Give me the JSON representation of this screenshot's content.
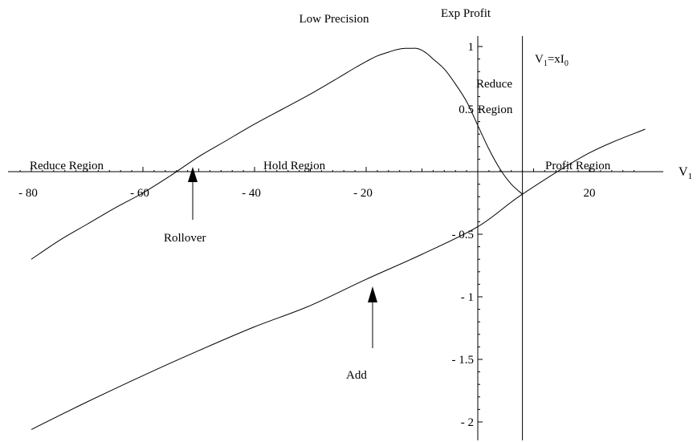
{
  "chart_data": {
    "type": "line",
    "title": "Low Precision",
    "xlabel": "V₁",
    "ylabel": "Exp Profit",
    "xlim": [
      -83,
      30
    ],
    "ylim": [
      -2.1,
      1.08
    ],
    "grid": false,
    "x_ticks": [
      -80,
      -60,
      -40,
      -20,
      20
    ],
    "y_ticks": [
      1,
      0.5,
      -0.5,
      -1,
      -1.5,
      -2
    ],
    "x_tick_labels": [
      "- 80",
      "- 60",
      "- 40",
      "- 20",
      "20"
    ],
    "y_tick_labels": [
      "1",
      "0.5",
      "- 0.5",
      "- 1",
      "- 1.5",
      "- 2"
    ],
    "series": [
      {
        "x": [
          -80,
          -75,
          -70,
          -65,
          -60,
          -55,
          -50,
          -45,
          -40,
          -35,
          -30,
          -25,
          -22,
          -20,
          -18,
          -16,
          -15,
          -14,
          -13,
          -12,
          -11,
          -10,
          -9,
          -8,
          -6,
          -4,
          -2,
          0,
          2,
          4,
          6,
          8
        ],
        "values": [
          -0.7,
          -0.55,
          -0.42,
          -0.29,
          -0.17,
          -0.03,
          0.12,
          0.25,
          0.38,
          0.5,
          0.62,
          0.75,
          0.83,
          0.88,
          0.925,
          0.955,
          0.97,
          0.98,
          0.985,
          0.985,
          0.985,
          0.97,
          0.94,
          0.9,
          0.82,
          0.7,
          0.56,
          0.37,
          0.18,
          0.02,
          -0.1,
          -0.18
        ]
      },
      {
        "x": [
          -80,
          -70,
          -60,
          -50,
          -40,
          -30,
          -20,
          -10,
          0,
          8,
          20,
          30
        ],
        "values": [
          -2.06,
          -1.84,
          -1.63,
          -1.43,
          -1.24,
          -1.07,
          -0.86,
          -0.66,
          -0.44,
          -0.18,
          0.15,
          0.34
        ]
      }
    ],
    "vertical_line": {
      "x": 8,
      "label_main": "V",
      "label_sub1": "1",
      "label_mid": "=xI",
      "label_sub2": "0"
    },
    "annotations": {
      "reduce_region_left": "Reduce Region",
      "hold_region": "Hold Region",
      "profit_region": "Profit Region",
      "reduce_region_top": "Reduce",
      "reduce_region_bottom": "Region",
      "rollover": "Rollover",
      "add": "Add"
    }
  }
}
